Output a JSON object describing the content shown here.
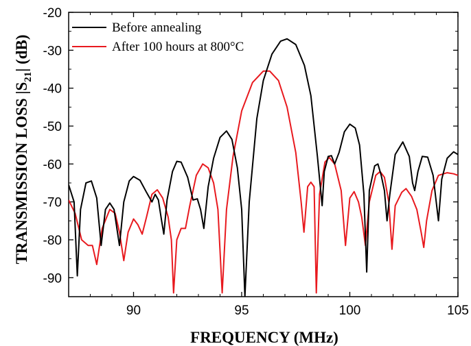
{
  "chart_data": {
    "type": "line",
    "xlabel": "FREQUENCY (MHz)",
    "ylabel_main": "TRANSMISSION LOSS |S",
    "ylabel_sub": "21",
    "ylabel_end": "| (dB)",
    "xlim": [
      87,
      105
    ],
    "ylim": [
      -95,
      -20
    ],
    "x_ticks": [
      90,
      95,
      100,
      105
    ],
    "y_ticks": [
      -90,
      -80,
      -70,
      -60,
      -50,
      -40,
      -30,
      -20
    ],
    "legend_position": "top-left",
    "grid": false,
    "series": [
      {
        "name": "Before annealing",
        "color": "#000000",
        "points": [
          [
            87.0,
            -65.5
          ],
          [
            87.25,
            -70
          ],
          [
            87.4,
            -89.5
          ],
          [
            87.55,
            -72
          ],
          [
            87.8,
            -65
          ],
          [
            88.05,
            -64.5
          ],
          [
            88.3,
            -69
          ],
          [
            88.5,
            -81.5
          ],
          [
            88.7,
            -72
          ],
          [
            88.9,
            -70.3
          ],
          [
            89.1,
            -72
          ],
          [
            89.35,
            -81.5
          ],
          [
            89.55,
            -70
          ],
          [
            89.8,
            -64.5
          ],
          [
            90.0,
            -63.3
          ],
          [
            90.3,
            -64.3
          ],
          [
            90.6,
            -67.5
          ],
          [
            90.85,
            -70
          ],
          [
            91.0,
            -68
          ],
          [
            91.15,
            -69.5
          ],
          [
            91.3,
            -75
          ],
          [
            91.4,
            -78.5
          ],
          [
            91.55,
            -69.5
          ],
          [
            91.8,
            -62
          ],
          [
            92.0,
            -59.3
          ],
          [
            92.2,
            -59.5
          ],
          [
            92.5,
            -63.5
          ],
          [
            92.75,
            -69.5
          ],
          [
            92.95,
            -69.2
          ],
          [
            93.1,
            -72
          ],
          [
            93.25,
            -77
          ],
          [
            93.45,
            -66
          ],
          [
            93.7,
            -58.5
          ],
          [
            94.0,
            -53
          ],
          [
            94.3,
            -51.3
          ],
          [
            94.55,
            -53.5
          ],
          [
            94.8,
            -61
          ],
          [
            95.0,
            -72
          ],
          [
            95.15,
            -95
          ],
          [
            95.35,
            -70
          ],
          [
            95.7,
            -48
          ],
          [
            96.0,
            -38
          ],
          [
            96.4,
            -31
          ],
          [
            96.8,
            -27.6
          ],
          [
            97.1,
            -27
          ],
          [
            97.5,
            -28.5
          ],
          [
            97.9,
            -34
          ],
          [
            98.2,
            -42
          ],
          [
            98.5,
            -58
          ],
          [
            98.72,
            -71
          ],
          [
            98.82,
            -62
          ],
          [
            99.0,
            -58
          ],
          [
            99.15,
            -57.8
          ],
          [
            99.3,
            -60
          ],
          [
            99.5,
            -57
          ],
          [
            99.75,
            -51.5
          ],
          [
            100.0,
            -49.5
          ],
          [
            100.25,
            -50.5
          ],
          [
            100.45,
            -55
          ],
          [
            100.65,
            -68
          ],
          [
            100.78,
            -88.5
          ],
          [
            100.9,
            -67
          ],
          [
            101.15,
            -60.5
          ],
          [
            101.3,
            -60
          ],
          [
            101.45,
            -63
          ],
          [
            101.6,
            -67
          ],
          [
            101.72,
            -75
          ],
          [
            101.85,
            -68
          ],
          [
            102.1,
            -57.5
          ],
          [
            102.45,
            -54.2
          ],
          [
            102.75,
            -58
          ],
          [
            102.9,
            -65
          ],
          [
            103.0,
            -67
          ],
          [
            103.15,
            -62
          ],
          [
            103.35,
            -58
          ],
          [
            103.6,
            -58.2
          ],
          [
            103.85,
            -63
          ],
          [
            104.1,
            -75
          ],
          [
            104.25,
            -64
          ],
          [
            104.5,
            -58.5
          ],
          [
            104.8,
            -56.8
          ],
          [
            105.0,
            -57.5
          ]
        ]
      },
      {
        "name": "After 100 hours at 800°C",
        "color": "#e8191e",
        "points": [
          [
            87.0,
            -69.5
          ],
          [
            87.3,
            -73
          ],
          [
            87.6,
            -80
          ],
          [
            87.9,
            -81.5
          ],
          [
            88.1,
            -81.5
          ],
          [
            88.3,
            -86.5
          ],
          [
            88.55,
            -77
          ],
          [
            88.9,
            -72
          ],
          [
            89.15,
            -73
          ],
          [
            89.35,
            -78
          ],
          [
            89.55,
            -85.5
          ],
          [
            89.75,
            -78
          ],
          [
            90.0,
            -74.5
          ],
          [
            90.2,
            -76
          ],
          [
            90.4,
            -78.5
          ],
          [
            90.6,
            -74
          ],
          [
            90.85,
            -68
          ],
          [
            91.1,
            -66.8
          ],
          [
            91.35,
            -69
          ],
          [
            91.6,
            -74
          ],
          [
            91.75,
            -80
          ],
          [
            91.85,
            -94
          ],
          [
            92.0,
            -80
          ],
          [
            92.2,
            -77
          ],
          [
            92.4,
            -77
          ],
          [
            92.6,
            -71
          ],
          [
            92.9,
            -63
          ],
          [
            93.2,
            -60
          ],
          [
            93.45,
            -61
          ],
          [
            93.7,
            -65
          ],
          [
            93.9,
            -72
          ],
          [
            94.1,
            -94
          ],
          [
            94.3,
            -72
          ],
          [
            94.6,
            -58
          ],
          [
            95.0,
            -46
          ],
          [
            95.5,
            -38.5
          ],
          [
            96.0,
            -35.5
          ],
          [
            96.3,
            -35.5
          ],
          [
            96.7,
            -38
          ],
          [
            97.1,
            -45
          ],
          [
            97.5,
            -57
          ],
          [
            97.75,
            -70
          ],
          [
            97.88,
            -78
          ],
          [
            98.05,
            -66
          ],
          [
            98.2,
            -64.8
          ],
          [
            98.35,
            -66
          ],
          [
            98.45,
            -94
          ],
          [
            98.6,
            -68
          ],
          [
            98.85,
            -59.5
          ],
          [
            99.05,
            -58.3
          ],
          [
            99.3,
            -60
          ],
          [
            99.6,
            -67
          ],
          [
            99.8,
            -81.5
          ],
          [
            100.0,
            -69
          ],
          [
            100.2,
            -67.3
          ],
          [
            100.4,
            -70
          ],
          [
            100.55,
            -74
          ],
          [
            100.72,
            -81.5
          ],
          [
            100.9,
            -70
          ],
          [
            101.2,
            -63
          ],
          [
            101.4,
            -62
          ],
          [
            101.6,
            -63.5
          ],
          [
            101.8,
            -70
          ],
          [
            101.95,
            -82.5
          ],
          [
            102.1,
            -71
          ],
          [
            102.4,
            -67.5
          ],
          [
            102.6,
            -66.5
          ],
          [
            102.85,
            -68.5
          ],
          [
            103.1,
            -72
          ],
          [
            103.3,
            -78
          ],
          [
            103.42,
            -82
          ],
          [
            103.55,
            -75
          ],
          [
            103.8,
            -67
          ],
          [
            104.1,
            -63
          ],
          [
            104.5,
            -62.3
          ],
          [
            104.8,
            -62.6
          ],
          [
            105.0,
            -63
          ]
        ]
      }
    ]
  }
}
